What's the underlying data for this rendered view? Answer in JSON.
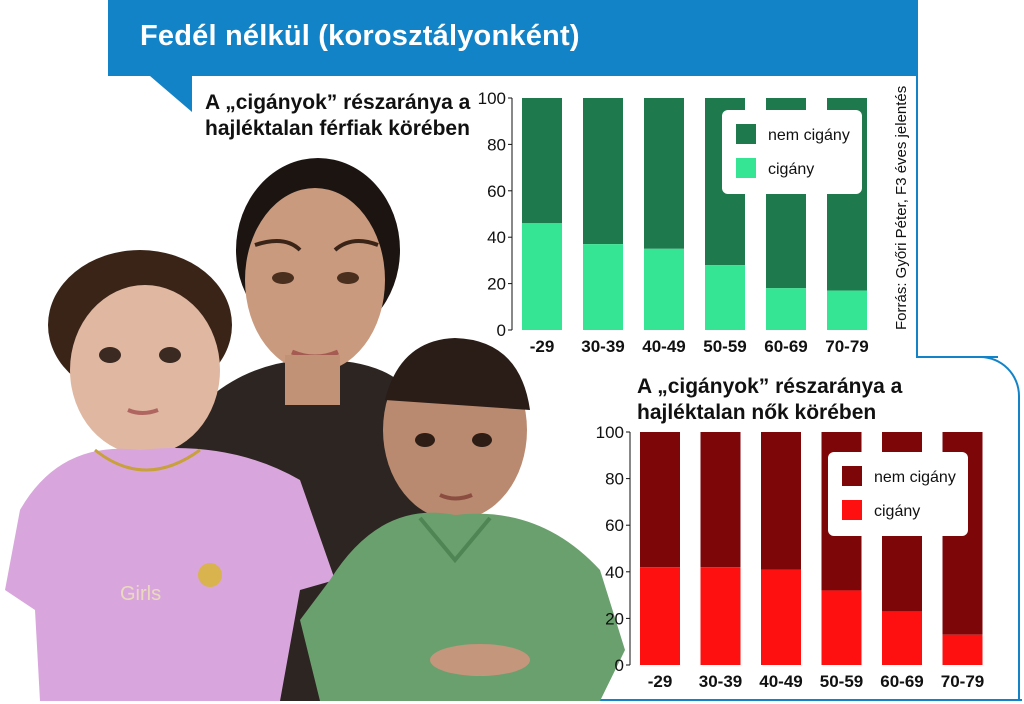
{
  "header": {
    "title": "Fedél nélkül (korosztályonként)"
  },
  "source_note": "Forrás: Győri Péter, F3 éves jelentés",
  "photo": {
    "description_icon": "family-photo"
  },
  "colors": {
    "banner": "#1383c8",
    "men_nem_cigany": "#1e7a4c",
    "men_cigany": "#35e593",
    "women_nem_cigany": "#7d0708",
    "women_cigany": "#ff1010"
  },
  "chart_data": [
    {
      "type": "bar",
      "stacked": true,
      "title": "A „cigányok” részaránya a hajléktalan férfiak körében",
      "categories": [
        "-29",
        "30-39",
        "40-49",
        "50-59",
        "60-69",
        "70-79"
      ],
      "series": [
        {
          "name": "cigány",
          "values": [
            46,
            37,
            35,
            28,
            18,
            17
          ]
        },
        {
          "name": "nem cigány",
          "values": [
            54,
            63,
            65,
            72,
            82,
            83
          ]
        }
      ],
      "y_ticks": [
        "0",
        "20",
        "40",
        "60",
        "80",
        "100"
      ],
      "ylim": [
        0,
        100
      ],
      "grid": false,
      "legend": "top-right"
    },
    {
      "type": "bar",
      "stacked": true,
      "title": "A „cigányok” részaránya a hajléktalan nők körében",
      "categories": [
        "-29",
        "30-39",
        "40-49",
        "50-59",
        "60-69",
        "70-79"
      ],
      "series": [
        {
          "name": "cigány",
          "values": [
            42,
            42,
            41,
            32,
            23,
            13
          ]
        },
        {
          "name": "nem cigány",
          "values": [
            58,
            58,
            59,
            68,
            77,
            87
          ]
        }
      ],
      "y_ticks": [
        "0",
        "20",
        "40",
        "60",
        "80",
        "100"
      ],
      "ylim": [
        0,
        100
      ],
      "grid": false,
      "legend": "top-right"
    }
  ]
}
